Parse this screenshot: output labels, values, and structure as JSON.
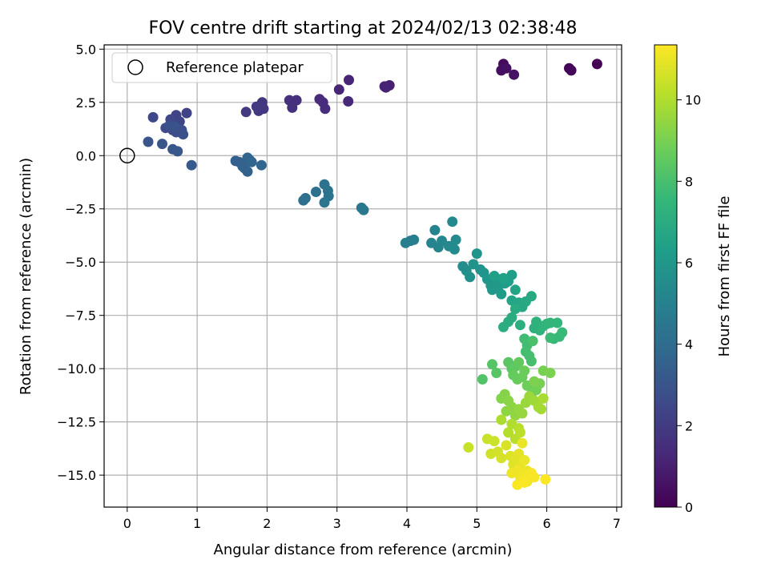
{
  "chart_data": {
    "type": "scatter",
    "title": "FOV centre drift starting at 2024/02/13 02:38:48",
    "xlabel": "Angular distance from reference (arcmin)",
    "ylabel": "Rotation from reference (arcmin)",
    "xlim": [
      -0.33,
      7.07
    ],
    "ylim": [
      -16.5,
      5.2
    ],
    "xticks": [
      0,
      1,
      2,
      3,
      4,
      5,
      6,
      7
    ],
    "yticks": [
      5.0,
      2.5,
      0.0,
      -2.5,
      -5.0,
      -7.5,
      -10.0,
      -12.5,
      -15.0
    ],
    "grid": true,
    "legend": {
      "placement": "top-left",
      "entries": [
        "Reference platepar"
      ]
    },
    "reference_point": {
      "x": 0,
      "y": 0,
      "label": "Reference platepar"
    },
    "colorbar": {
      "label": "Hours from first FF file",
      "min": 0,
      "max": 11.35,
      "ticks": [
        0,
        2,
        4,
        6,
        8,
        10
      ],
      "colormap": [
        "#440154",
        "#482878",
        "#3e4989",
        "#31688e",
        "#26828e",
        "#1f9e89",
        "#35b779",
        "#6ece58",
        "#b5de2b",
        "#fde725"
      ]
    },
    "points": [
      [
        6.72,
        4.3,
        0.05
      ],
      [
        6.32,
        4.1,
        0.12
      ],
      [
        6.35,
        4.0,
        0.18
      ],
      [
        5.38,
        4.3,
        0.35
      ],
      [
        5.35,
        4.0,
        0.42
      ],
      [
        5.42,
        4.1,
        0.48
      ],
      [
        5.53,
        3.8,
        0.55
      ],
      [
        3.75,
        3.3,
        1.0
      ],
      [
        3.7,
        3.2,
        1.05
      ],
      [
        3.68,
        3.25,
        1.1
      ],
      [
        3.17,
        3.55,
        1.15
      ],
      [
        3.03,
        3.1,
        1.2
      ],
      [
        3.16,
        2.55,
        1.3
      ],
      [
        2.75,
        2.65,
        1.4
      ],
      [
        2.8,
        2.5,
        1.45
      ],
      [
        2.83,
        2.2,
        1.5
      ],
      [
        2.42,
        2.6,
        1.55
      ],
      [
        2.32,
        2.6,
        1.6
      ],
      [
        2.36,
        2.25,
        1.65
      ],
      [
        1.93,
        2.5,
        1.75
      ],
      [
        1.95,
        2.2,
        1.8
      ],
      [
        1.88,
        2.1,
        1.85
      ],
      [
        1.85,
        2.3,
        1.9
      ],
      [
        1.7,
        2.05,
        1.95
      ],
      [
        0.85,
        2.0,
        2.3
      ],
      [
        0.7,
        1.9,
        2.35
      ],
      [
        0.75,
        1.6,
        2.4
      ],
      [
        0.62,
        1.7,
        2.45
      ],
      [
        0.37,
        1.8,
        2.5
      ],
      [
        0.55,
        1.3,
        2.6
      ],
      [
        0.65,
        1.2,
        2.65
      ],
      [
        0.7,
        1.1,
        2.7
      ],
      [
        0.78,
        1.2,
        2.75
      ],
      [
        0.8,
        1.0,
        2.8
      ],
      [
        0.6,
        1.4,
        2.85
      ],
      [
        0.68,
        1.35,
        2.9
      ],
      [
        0.3,
        0.65,
        3.0
      ],
      [
        0.5,
        0.55,
        3.05
      ],
      [
        0.65,
        0.3,
        3.1
      ],
      [
        0.72,
        0.2,
        3.15
      ],
      [
        0.92,
        -0.45,
        3.2
      ],
      [
        1.6,
        -0.3,
        3.4
      ],
      [
        1.55,
        -0.25,
        3.45
      ],
      [
        1.65,
        -0.5,
        3.5
      ],
      [
        1.72,
        -0.75,
        3.55
      ],
      [
        1.68,
        -0.6,
        3.6
      ],
      [
        1.75,
        -0.2,
        3.62
      ],
      [
        1.72,
        -0.1,
        3.65
      ],
      [
        1.78,
        -0.3,
        3.7
      ],
      [
        1.92,
        -0.45,
        3.72
      ],
      [
        2.55,
        -2.0,
        4.1
      ],
      [
        2.52,
        -2.1,
        4.15
      ],
      [
        2.7,
        -1.7,
        4.2
      ],
      [
        2.82,
        -1.35,
        4.25
      ],
      [
        2.87,
        -1.65,
        4.3
      ],
      [
        2.88,
        -1.9,
        4.35
      ],
      [
        2.82,
        -2.2,
        4.4
      ],
      [
        3.35,
        -2.45,
        4.5
      ],
      [
        3.38,
        -2.55,
        4.55
      ],
      [
        3.98,
        -4.1,
        4.8
      ],
      [
        4.05,
        -4.0,
        4.85
      ],
      [
        4.1,
        -3.95,
        4.9
      ],
      [
        4.4,
        -3.5,
        5.1
      ],
      [
        4.35,
        -4.1,
        5.15
      ],
      [
        4.45,
        -4.3,
        5.2
      ],
      [
        4.5,
        -4.0,
        5.25
      ],
      [
        4.6,
        -4.25,
        5.3
      ],
      [
        4.65,
        -3.1,
        5.35
      ],
      [
        4.7,
        -3.95,
        5.4
      ],
      [
        4.68,
        -4.4,
        5.45
      ],
      [
        4.8,
        -5.2,
        5.6
      ],
      [
        4.85,
        -5.4,
        5.65
      ],
      [
        4.9,
        -5.7,
        5.7
      ],
      [
        4.95,
        -5.1,
        5.75
      ],
      [
        5.05,
        -5.35,
        5.8
      ],
      [
        5.0,
        -4.6,
        5.85
      ],
      [
        5.1,
        -5.5,
        5.9
      ],
      [
        5.15,
        -5.8,
        5.95
      ],
      [
        5.2,
        -6.1,
        6.0
      ],
      [
        5.22,
        -6.3,
        6.05
      ],
      [
        5.3,
        -6.2,
        6.1
      ],
      [
        5.3,
        -5.8,
        6.15
      ],
      [
        5.35,
        -6.5,
        6.2
      ],
      [
        5.4,
        -6.0,
        6.25
      ],
      [
        5.45,
        -5.9,
        6.3
      ],
      [
        5.5,
        -5.6,
        6.35
      ],
      [
        5.25,
        -5.65,
        6.4
      ],
      [
        5.38,
        -5.75,
        6.45
      ],
      [
        5.55,
        -6.3,
        6.6
      ],
      [
        5.5,
        -6.8,
        6.65
      ],
      [
        5.6,
        -6.9,
        6.7
      ],
      [
        5.65,
        -7.1,
        6.75
      ],
      [
        5.7,
        -6.85,
        6.8
      ],
      [
        5.78,
        -6.6,
        6.85
      ],
      [
        5.55,
        -7.2,
        6.9
      ],
      [
        5.5,
        -7.6,
        6.95
      ],
      [
        5.45,
        -7.8,
        7.0
      ],
      [
        5.38,
        -8.05,
        7.05
      ],
      [
        5.62,
        -7.95,
        7.1
      ],
      [
        5.82,
        -8.1,
        7.2
      ],
      [
        5.85,
        -7.8,
        7.25
      ],
      [
        5.9,
        -8.2,
        7.3
      ],
      [
        5.95,
        -8.0,
        7.35
      ],
      [
        6.0,
        -7.9,
        7.4
      ],
      [
        6.05,
        -7.85,
        7.45
      ],
      [
        6.15,
        -7.85,
        7.5
      ],
      [
        6.1,
        -8.6,
        7.55
      ],
      [
        6.18,
        -8.5,
        7.6
      ],
      [
        6.22,
        -8.3,
        7.65
      ],
      [
        6.05,
        -8.55,
        7.7
      ],
      [
        5.68,
        -8.6,
        7.8
      ],
      [
        5.72,
        -8.9,
        7.85
      ],
      [
        5.7,
        -9.2,
        7.9
      ],
      [
        5.75,
        -9.4,
        7.95
      ],
      [
        5.78,
        -9.65,
        8.0
      ],
      [
        5.8,
        -8.7,
        8.05
      ],
      [
        5.08,
        -10.5,
        8.2
      ],
      [
        5.22,
        -9.8,
        8.3
      ],
      [
        5.28,
        -10.2,
        8.35
      ],
      [
        5.45,
        -9.7,
        8.4
      ],
      [
        5.5,
        -10.0,
        8.45
      ],
      [
        5.55,
        -9.9,
        8.5
      ],
      [
        5.6,
        -9.7,
        8.55
      ],
      [
        5.52,
        -10.3,
        8.6
      ],
      [
        5.58,
        -10.5,
        8.65
      ],
      [
        5.65,
        -10.4,
        8.7
      ],
      [
        5.68,
        -10.1,
        8.75
      ],
      [
        5.72,
        -10.8,
        8.8
      ],
      [
        5.78,
        -11.2,
        8.85
      ],
      [
        5.85,
        -11.0,
        8.9
      ],
      [
        5.9,
        -10.7,
        8.95
      ],
      [
        5.95,
        -10.1,
        9.0
      ],
      [
        6.05,
        -10.2,
        9.05
      ],
      [
        5.82,
        -10.6,
        9.1
      ],
      [
        5.35,
        -11.4,
        9.2
      ],
      [
        5.4,
        -11.2,
        9.25
      ],
      [
        5.45,
        -11.5,
        9.3
      ],
      [
        5.5,
        -11.8,
        9.35
      ],
      [
        5.42,
        -12.0,
        9.4
      ],
      [
        5.55,
        -12.2,
        9.45
      ],
      [
        5.6,
        -11.9,
        9.5
      ],
      [
        5.65,
        -12.1,
        9.55
      ],
      [
        5.7,
        -11.6,
        9.6
      ],
      [
        5.75,
        -11.3,
        9.65
      ],
      [
        5.82,
        -11.5,
        9.7
      ],
      [
        5.88,
        -11.8,
        9.75
      ],
      [
        5.92,
        -11.9,
        9.8
      ],
      [
        5.95,
        -11.4,
        9.85
      ],
      [
        5.35,
        -12.4,
        9.95
      ],
      [
        5.5,
        -12.6,
        10.0
      ],
      [
        5.45,
        -13.0,
        10.05
      ],
      [
        5.6,
        -12.8,
        10.1
      ],
      [
        5.55,
        -13.3,
        10.15
      ],
      [
        5.62,
        -13.0,
        10.2
      ],
      [
        4.88,
        -13.7,
        10.4
      ],
      [
        5.15,
        -13.3,
        10.45
      ],
      [
        5.25,
        -13.4,
        10.5
      ],
      [
        5.2,
        -14.0,
        10.55
      ],
      [
        5.3,
        -13.9,
        10.6
      ],
      [
        5.35,
        -14.2,
        10.65
      ],
      [
        5.42,
        -13.6,
        10.7
      ],
      [
        5.48,
        -14.1,
        10.75
      ],
      [
        5.52,
        -14.5,
        10.8
      ],
      [
        5.55,
        -14.2,
        10.85
      ],
      [
        5.6,
        -14.0,
        10.9
      ],
      [
        5.62,
        -14.6,
        10.95
      ],
      [
        5.65,
        -13.5,
        11.0
      ],
      [
        5.68,
        -14.3,
        11.02
      ],
      [
        5.72,
        -14.8,
        11.05
      ],
      [
        5.5,
        -14.9,
        11.08
      ],
      [
        5.58,
        -14.8,
        11.1
      ],
      [
        5.62,
        -15.1,
        11.12
      ],
      [
        5.68,
        -15.0,
        11.15
      ],
      [
        5.72,
        -15.3,
        11.18
      ],
      [
        5.75,
        -15.0,
        11.2
      ],
      [
        5.78,
        -14.9,
        11.22
      ],
      [
        5.82,
        -15.1,
        11.25
      ],
      [
        5.58,
        -15.45,
        11.28
      ],
      [
        5.68,
        -15.35,
        11.3
      ],
      [
        5.98,
        -15.2,
        11.32
      ]
    ]
  }
}
